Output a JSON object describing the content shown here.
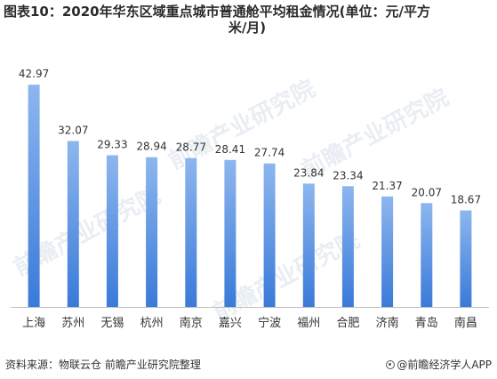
{
  "title": {
    "line1": "图表10：2020年华东区域重点城市普通舱平均租金情况(单位：元/平方",
    "line2": "米/月)"
  },
  "footer": {
    "source": "资料来源：物联云仓 前瞻产业研究院整理",
    "brand": "@前瞻经济学人APP"
  },
  "watermark": {
    "text": "前瞻产业研究院"
  },
  "colors": {
    "bar_top": "#8db6ee",
    "bar_bottom": "#3a7ad9",
    "axis": "#bfbfbf",
    "label": "#333333"
  },
  "chart_data": {
    "type": "bar",
    "categories": [
      "上海",
      "苏州",
      "无锡",
      "杭州",
      "南京",
      "嘉兴",
      "宁波",
      "福州",
      "合肥",
      "济南",
      "青岛",
      "南昌"
    ],
    "values": [
      42.97,
      32.07,
      29.33,
      28.94,
      28.77,
      28.41,
      27.74,
      23.84,
      23.34,
      21.37,
      20.07,
      18.67
    ],
    "value_labels": [
      "42.97",
      "32.07",
      "29.33",
      "28.94",
      "28.77",
      "28.41",
      "27.74",
      "23.84",
      "23.34",
      "21.37",
      "20.07",
      "18.67"
    ],
    "xlabel": "",
    "ylabel": "",
    "ylim": [
      0,
      43
    ],
    "grid": false,
    "legend": "none"
  }
}
